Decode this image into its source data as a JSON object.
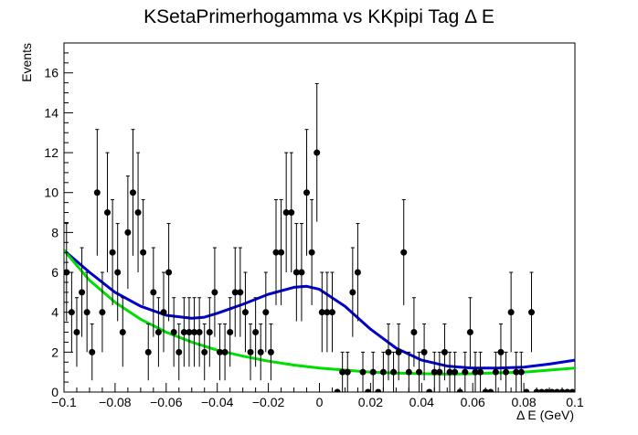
{
  "chart_data": {
    "type": "scatter",
    "title": "KSetaPrimerhogamma vs KKpipi Tag Δ E",
    "xlabel": "Δ E (GeV)",
    "ylabel": "Events",
    "xlim": [
      -0.1,
      0.1
    ],
    "ylim": [
      0,
      17.5
    ],
    "grid": false,
    "x_ticks": [
      -0.1,
      -0.08,
      -0.06,
      -0.04,
      -0.02,
      0,
      0.02,
      0.04,
      0.06,
      0.08,
      0.1
    ],
    "x_tick_labels": [
      "−0.1",
      "−0.08",
      "−0.06",
      "−0.04",
      "−0.02",
      "0",
      "0.02",
      "0.04",
      "0.06",
      "0.08",
      "0.1"
    ],
    "y_ticks": [
      0,
      2,
      4,
      6,
      8,
      10,
      12,
      14,
      16
    ],
    "y_tick_labels": [
      "0",
      "2",
      "4",
      "6",
      "8",
      "10",
      "12",
      "14",
      "16"
    ],
    "points": {
      "x": [
        -0.099,
        -0.097,
        -0.095,
        -0.093,
        -0.091,
        -0.089,
        -0.087,
        -0.085,
        -0.083,
        -0.081,
        -0.079,
        -0.077,
        -0.075,
        -0.073,
        -0.071,
        -0.069,
        -0.067,
        -0.065,
        -0.063,
        -0.061,
        -0.059,
        -0.057,
        -0.055,
        -0.053,
        -0.051,
        -0.049,
        -0.047,
        -0.045,
        -0.043,
        -0.041,
        -0.039,
        -0.037,
        -0.035,
        -0.033,
        -0.031,
        -0.029,
        -0.027,
        -0.025,
        -0.023,
        -0.021,
        -0.019,
        -0.017,
        -0.015,
        -0.013,
        -0.011,
        -0.009,
        -0.007,
        -0.005,
        -0.003,
        -0.001,
        0.001,
        0.003,
        0.005,
        0.007,
        0.009,
        0.011,
        0.013,
        0.015,
        0.017,
        0.019,
        0.021,
        0.023,
        0.025,
        0.027,
        0.029,
        0.031,
        0.033,
        0.035,
        0.037,
        0.039,
        0.041,
        0.043,
        0.045,
        0.047,
        0.049,
        0.051,
        0.053,
        0.055,
        0.057,
        0.059,
        0.061,
        0.063,
        0.065,
        0.067,
        0.069,
        0.071,
        0.073,
        0.075,
        0.077,
        0.079,
        0.081,
        0.083,
        0.085,
        0.087,
        0.089,
        0.091,
        0.093,
        0.095,
        0.097,
        0.099
      ],
      "y": [
        6,
        4,
        3,
        5,
        4,
        2,
        10,
        4,
        9,
        7,
        6,
        3,
        8,
        10,
        9,
        7,
        2,
        5,
        3,
        4,
        6,
        3,
        2,
        3,
        3,
        3,
        3,
        2,
        3,
        5,
        2,
        2,
        3,
        5,
        5,
        4,
        2,
        3,
        2,
        4,
        2,
        7,
        7,
        9,
        9,
        6,
        6,
        10,
        7,
        12,
        4,
        4,
        4,
        0,
        1,
        1,
        5,
        6,
        1,
        0,
        1,
        0,
        1,
        2,
        1,
        2,
        7,
        1,
        3,
        1,
        2,
        0,
        1,
        1,
        2,
        1,
        1,
        0,
        1,
        3,
        1,
        1,
        0,
        0,
        1,
        2,
        1,
        4,
        1,
        1,
        0,
        4,
        0,
        0,
        0,
        0,
        0,
        0,
        0,
        0
      ]
    },
    "series": [
      {
        "name": "",
        "color": "#0000cc",
        "style": "solid line",
        "x": [
          -0.1,
          -0.09,
          -0.08,
          -0.07,
          -0.06,
          -0.05,
          -0.045,
          -0.04,
          -0.03,
          -0.02,
          -0.01,
          -0.005,
          0,
          0.01,
          0.02,
          0.03,
          0.04,
          0.05,
          0.06,
          0.07,
          0.08,
          0.09,
          0.1
        ],
        "y": [
          7.1,
          6.0,
          5.0,
          4.3,
          3.85,
          3.7,
          3.75,
          3.95,
          4.4,
          4.9,
          5.25,
          5.3,
          5.15,
          4.3,
          3.15,
          2.2,
          1.6,
          1.3,
          1.2,
          1.2,
          1.25,
          1.4,
          1.6
        ]
      },
      {
        "name": "",
        "color": "#00dd00",
        "style": "solid line",
        "x": [
          -0.1,
          -0.09,
          -0.08,
          -0.07,
          -0.06,
          -0.05,
          -0.04,
          -0.03,
          -0.02,
          -0.01,
          0,
          0.01,
          0.02,
          0.03,
          0.04,
          0.05,
          0.06,
          0.07,
          0.08,
          0.09,
          0.1
        ],
        "y": [
          7.1,
          5.6,
          4.5,
          3.65,
          3.0,
          2.5,
          2.1,
          1.8,
          1.55,
          1.35,
          1.2,
          1.1,
          1.0,
          0.95,
          0.92,
          0.9,
          0.92,
          0.96,
          1.0,
          1.1,
          1.2
        ]
      }
    ]
  }
}
